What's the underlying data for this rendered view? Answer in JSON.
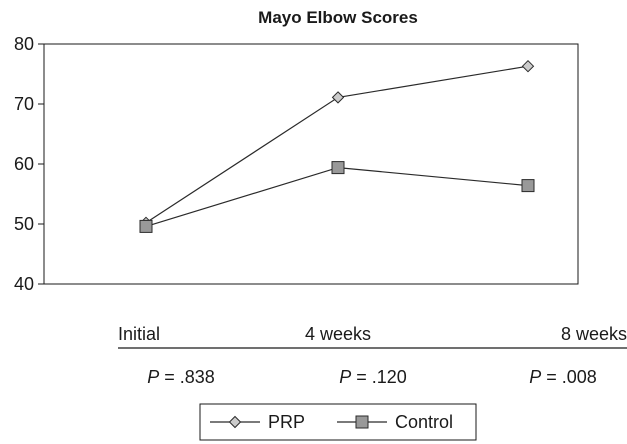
{
  "chart_data": {
    "type": "line",
    "title": "Mayo Elbow Scores",
    "categories": [
      "Initial",
      "4 weeks",
      "8 weeks"
    ],
    "series": [
      {
        "name": "PRP",
        "values": [
          50.2,
          71.1,
          76.3
        ],
        "marker": "diamond",
        "color": "#cccccc"
      },
      {
        "name": "Control",
        "values": [
          49.6,
          59.4,
          56.4
        ],
        "marker": "square",
        "color": "#999999"
      }
    ],
    "ylim": [
      40,
      80
    ],
    "yticks": [
      40,
      50,
      60,
      70,
      80
    ],
    "grid": false,
    "legend_position": "bottom",
    "p_values": [
      {
        "symbol": "P",
        "text": " = .838"
      },
      {
        "symbol": "P",
        "text": " = .120"
      },
      {
        "symbol": "P",
        "text": " = .008"
      }
    ]
  }
}
